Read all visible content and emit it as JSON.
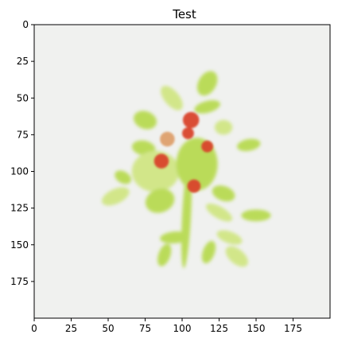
{
  "chart_data": {
    "type": "image",
    "title": "Test",
    "xlim": [
      0,
      200
    ],
    "ylim": [
      200,
      0
    ],
    "xticks": [
      0,
      25,
      50,
      75,
      100,
      125,
      150,
      175
    ],
    "yticks": [
      0,
      25,
      50,
      75,
      100,
      125,
      150,
      175
    ],
    "xtick_labels": [
      "0",
      "25",
      "50",
      "75",
      "100",
      "125",
      "150",
      "175"
    ],
    "ytick_labels": [
      "0",
      "25",
      "50",
      "75",
      "100",
      "125",
      "150",
      "175"
    ],
    "image": {
      "background_color": "#f0f1ef",
      "foliage_color": "#b5d94a",
      "foliage_light_color": "#cfe57f",
      "fruit_color": "#d9452b",
      "fruit_muted_color": "#d98b4a",
      "leaves": [
        {
          "x": 117,
          "y": 40,
          "rx": 6,
          "ry": 9,
          "rot": 30
        },
        {
          "x": 93,
          "y": 50,
          "rx": 5,
          "ry": 10,
          "rot": -40
        },
        {
          "x": 117,
          "y": 56,
          "rx": 9,
          "ry": 4,
          "rot": -15
        },
        {
          "x": 75,
          "y": 65,
          "rx": 8,
          "ry": 6,
          "rot": 20
        },
        {
          "x": 128,
          "y": 70,
          "rx": 6,
          "ry": 5,
          "rot": 0
        },
        {
          "x": 74,
          "y": 84,
          "rx": 8,
          "ry": 5,
          "rot": 10
        },
        {
          "x": 145,
          "y": 82,
          "rx": 8,
          "ry": 4,
          "rot": -10
        },
        {
          "x": 82,
          "y": 100,
          "rx": 16,
          "ry": 14,
          "rot": 0
        },
        {
          "x": 110,
          "y": 95,
          "rx": 14,
          "ry": 18,
          "rot": 0
        },
        {
          "x": 60,
          "y": 104,
          "rx": 6,
          "ry": 4,
          "rot": 30
        },
        {
          "x": 55,
          "y": 117,
          "rx": 10,
          "ry": 5,
          "rot": -25
        },
        {
          "x": 85,
          "y": 120,
          "rx": 10,
          "ry": 8,
          "rot": -20
        },
        {
          "x": 128,
          "y": 115,
          "rx": 8,
          "ry": 5,
          "rot": 20
        },
        {
          "x": 125,
          "y": 128,
          "rx": 10,
          "ry": 4,
          "rot": 30
        },
        {
          "x": 150,
          "y": 130,
          "rx": 10,
          "ry": 4,
          "rot": 0
        },
        {
          "x": 95,
          "y": 145,
          "rx": 10,
          "ry": 4,
          "rot": -5
        },
        {
          "x": 132,
          "y": 145,
          "rx": 9,
          "ry": 4,
          "rot": 20
        },
        {
          "x": 88,
          "y": 157,
          "rx": 4,
          "ry": 8,
          "rot": 20
        },
        {
          "x": 118,
          "y": 155,
          "rx": 4,
          "ry": 8,
          "rot": 20
        },
        {
          "x": 137,
          "y": 158,
          "rx": 9,
          "ry": 5,
          "rot": 40
        },
        {
          "x": 103,
          "y": 130,
          "rx": 3,
          "ry": 36,
          "rot": 3
        }
      ],
      "fruits": [
        {
          "x": 106,
          "y": 65,
          "r": 5.5,
          "muted": false
        },
        {
          "x": 104,
          "y": 74,
          "r": 4,
          "muted": false
        },
        {
          "x": 117,
          "y": 83,
          "r": 4,
          "muted": false
        },
        {
          "x": 90,
          "y": 78,
          "r": 5,
          "muted": true
        },
        {
          "x": 86,
          "y": 93,
          "r": 5,
          "muted": false
        },
        {
          "x": 108,
          "y": 110,
          "r": 4.5,
          "muted": false
        }
      ]
    }
  }
}
